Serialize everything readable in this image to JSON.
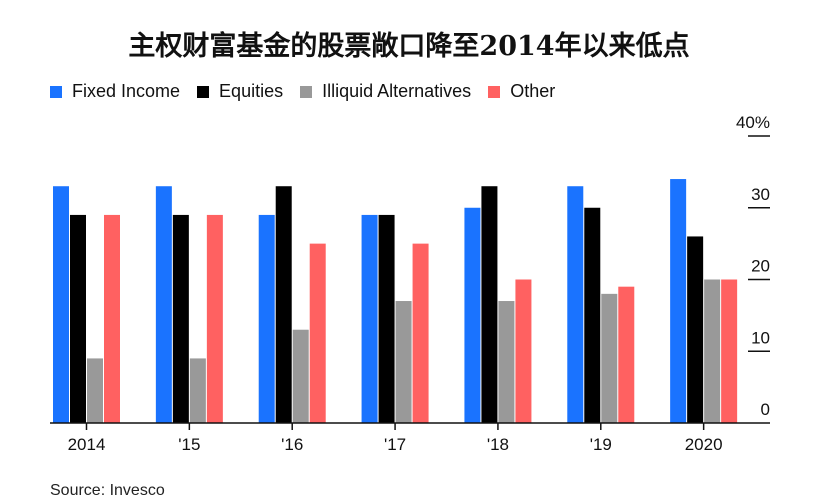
{
  "title": "主权财富基金的股票敞口降至2014年以来低点",
  "source": "Source: Invesco",
  "chart_data": {
    "type": "bar",
    "categories": [
      "2014",
      "'15",
      "'16",
      "'17",
      "'18",
      "'19",
      "2020"
    ],
    "series": [
      {
        "name": "Fixed Income",
        "color": "#1a73ff",
        "values": [
          33,
          33,
          29,
          29,
          30,
          33,
          34
        ]
      },
      {
        "name": "Equities",
        "color": "#000000",
        "values": [
          29,
          29,
          33,
          29,
          33,
          30,
          26
        ]
      },
      {
        "name": "Illiquid Alternatives",
        "color": "#999999",
        "values": [
          9,
          9,
          13,
          17,
          17,
          18,
          20
        ]
      },
      {
        "name": "Other",
        "color": "#ff6161",
        "values": [
          29,
          29,
          25,
          25,
          20,
          19,
          20
        ]
      }
    ],
    "ylim": [
      0,
      40
    ],
    "yticks": [
      0,
      10,
      20,
      30,
      40
    ],
    "ytick_labels": [
      "0",
      "10",
      "20",
      "30",
      "40%"
    ],
    "legend_position": "top-left",
    "grid": false
  }
}
